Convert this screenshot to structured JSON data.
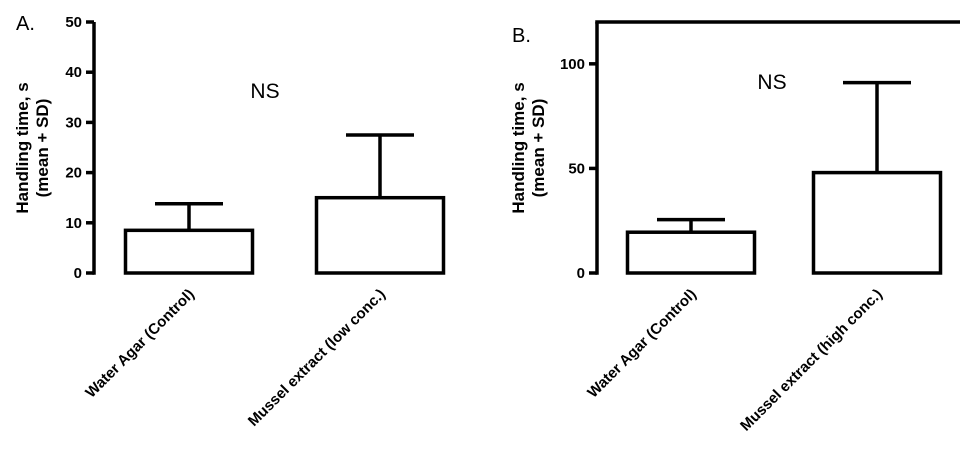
{
  "chart_data": [
    {
      "type": "bar",
      "panel_label": "A.",
      "categories": [
        "Water Agar (Control)",
        "Mussel extract (low conc.)"
      ],
      "values": [
        8.5,
        15
      ],
      "error_sd": [
        5.3,
        12.5
      ],
      "ylabel_line1": "Handling time, s",
      "ylabel_line2": "(mean + SD)",
      "ylim": [
        0,
        50
      ],
      "yticks": [
        0,
        10,
        20,
        30,
        40,
        50
      ],
      "annotation": "NS",
      "frame": "left-axis",
      "grid": false
    },
    {
      "type": "bar",
      "panel_label": "B.",
      "categories": [
        "Water Agar (Control)",
        "Mussel extract (high conc.)"
      ],
      "values": [
        19.5,
        48
      ],
      "error_sd": [
        6,
        43
      ],
      "ylabel_line1": "Handling time, s",
      "ylabel_line2": "(mean + SD)",
      "ylim": [
        0,
        120
      ],
      "yticks": [
        0,
        50,
        100
      ],
      "annotation": "NS",
      "frame": "left-and-top-axis",
      "grid": false
    }
  ]
}
